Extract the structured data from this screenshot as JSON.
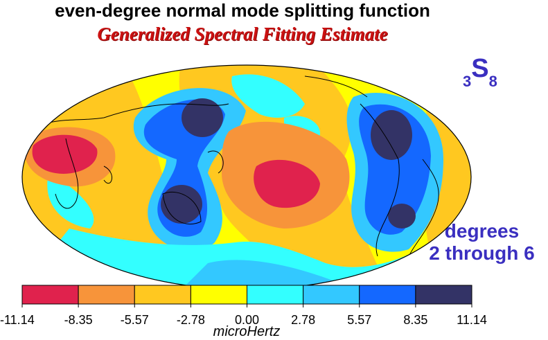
{
  "title": "even-degree normal mode splitting function",
  "subtitle": "Generalized Spectral Fitting Estimate",
  "mode_label": {
    "prefix": "3",
    "letter": "S",
    "suffix": "8"
  },
  "degrees_label": {
    "line1": "degrees",
    "line2": "2 through 6"
  },
  "colorbar": {
    "unit": "microHertz",
    "ticks": [
      "-11.14",
      "-8.35",
      "-5.57",
      "-2.78",
      "0.00",
      "2.78",
      "5.57",
      "8.35",
      "11.14"
    ],
    "colors": [
      "#e0224d",
      "#f7943a",
      "#ffc820",
      "#ffff00",
      "#33ffff",
      "#33c8ff",
      "#1468ff",
      "#333366"
    ]
  },
  "map_colors": {
    "deep_red": "#e0224d",
    "orange": "#f7943a",
    "gold": "#ffc820",
    "yellow": "#ffff00",
    "cyan": "#33ffff",
    "sky": "#33c8ff",
    "blue": "#1468ff",
    "navy": "#333366"
  }
}
